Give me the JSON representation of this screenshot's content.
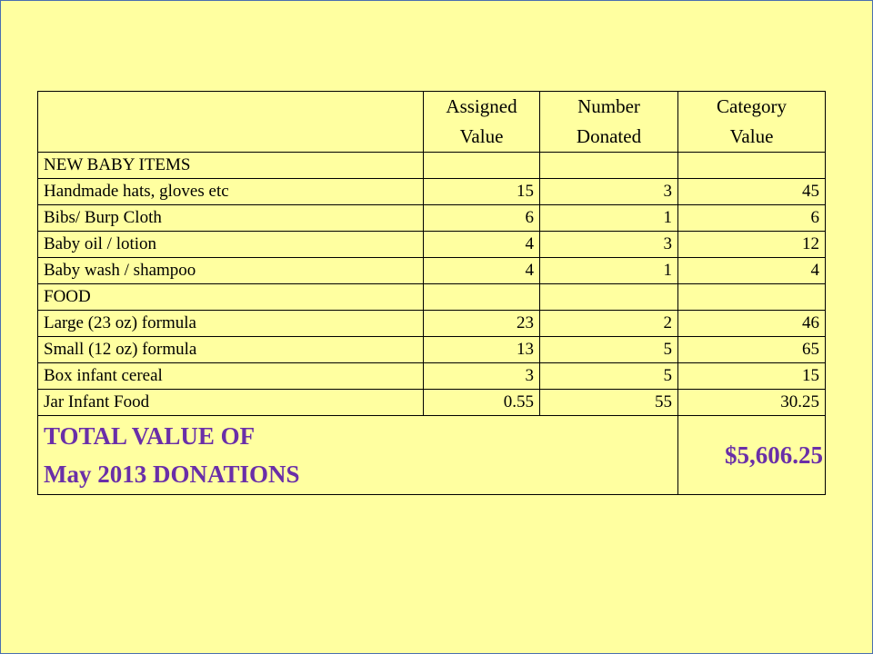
{
  "table": {
    "headers": {
      "item": "",
      "assigned_value": [
        "Assigned",
        "Value"
      ],
      "number_donated": [
        "Number",
        "Donated"
      ],
      "category_value": [
        "Category",
        "Value"
      ]
    },
    "rows": [
      {
        "item": "NEW BABY ITEMS",
        "assigned": "",
        "number": "",
        "category": ""
      },
      {
        "item": "Handmade hats, gloves etc",
        "assigned": "15",
        "number": "3",
        "category": "45"
      },
      {
        "item": "Bibs/ Burp Cloth",
        "assigned": "6",
        "number": "1",
        "category": "6"
      },
      {
        "item": "Baby oil / lotion",
        "assigned": "4",
        "number": "3",
        "category": "12"
      },
      {
        "item": "Baby wash / shampoo",
        "assigned": "4",
        "number": "1",
        "category": "4"
      },
      {
        "item": "FOOD",
        "assigned": "",
        "number": "",
        "category": ""
      },
      {
        "item": "Large (23 oz) formula",
        "assigned": "23",
        "number": "2",
        "category": "46"
      },
      {
        "item": "Small (12 oz) formula",
        "assigned": "13",
        "number": "5",
        "category": "65"
      },
      {
        "item": "Box infant cereal",
        "assigned": "3",
        "number": "5",
        "category": "15"
      },
      {
        "item": "Jar Infant Food",
        "assigned": "0.55",
        "number": "55",
        "category": "30.25"
      }
    ],
    "total": {
      "label_line1": "TOTAL VALUE OF",
      "label_line2": "May 2013 DONATIONS",
      "amount": "$5,606.25"
    }
  },
  "colors": {
    "background": "#ffffa0",
    "total_text": "#6a2fa8",
    "frame": "#4a6fb0"
  }
}
